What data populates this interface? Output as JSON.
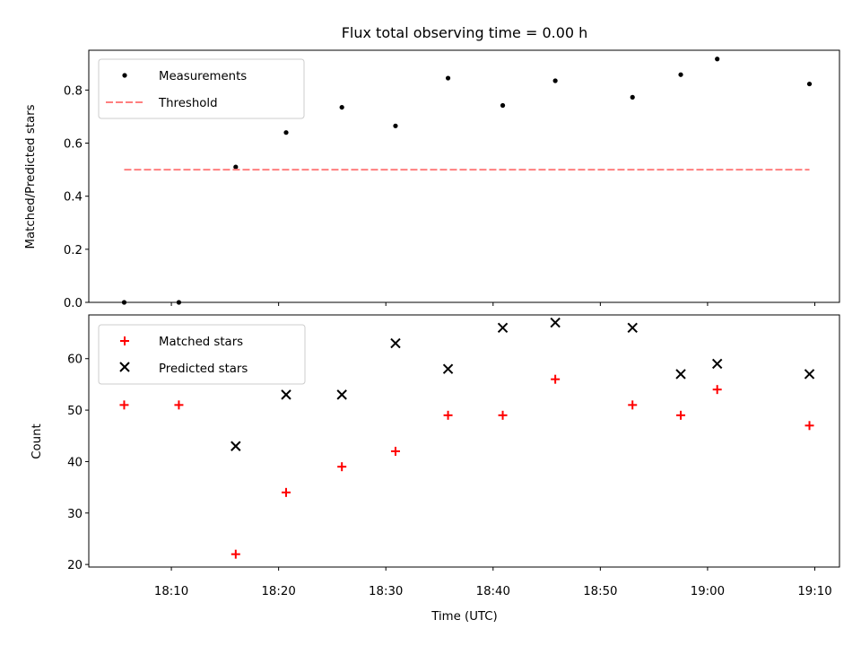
{
  "chart_data": [
    {
      "type": "scatter",
      "title": "Flux total observing time = 0.00 h",
      "xlabel": "",
      "ylabel": "Matched/Predicted stars",
      "ylim": [
        0.0,
        0.95
      ],
      "yticks": [
        0.0,
        0.2,
        0.4,
        0.6,
        0.8
      ],
      "ytick_labels": [
        "0.0",
        "0.2",
        "0.4",
        "0.6",
        "0.8"
      ],
      "xlim_minutes": [
        1082.3,
        1152.3
      ],
      "legend_position": "upper-left",
      "series": [
        {
          "name": "Measurements",
          "marker": "dot",
          "color": "#000000",
          "x_minutes": [
            1085.6,
            1090.7,
            1096.0,
            1100.7,
            1105.9,
            1110.9,
            1115.8,
            1120.9,
            1125.8,
            1133.0,
            1137.5,
            1140.9,
            1149.5
          ],
          "values": [
            0.0,
            0.0,
            0.51,
            0.64,
            0.735,
            0.665,
            0.845,
            0.742,
            0.835,
            0.773,
            0.858,
            0.917,
            0.823
          ]
        },
        {
          "name": "Threshold",
          "marker": "dashed-line",
          "color": "#ff7f7f",
          "x_minutes": [
            1085.6,
            1149.5
          ],
          "values": [
            0.5,
            0.5
          ]
        }
      ]
    },
    {
      "type": "scatter",
      "title": "",
      "xlabel": "Time (UTC)",
      "ylabel": "Count",
      "ylim": [
        19.5,
        68.5
      ],
      "yticks": [
        20,
        30,
        40,
        50,
        60
      ],
      "ytick_labels": [
        "20",
        "30",
        "40",
        "50",
        "60"
      ],
      "xlim_minutes": [
        1082.3,
        1152.3
      ],
      "xticks_minutes": [
        1090,
        1100,
        1110,
        1120,
        1130,
        1140,
        1150
      ],
      "xtick_labels": [
        "18:10",
        "18:20",
        "18:30",
        "18:40",
        "18:50",
        "19:00",
        "19:10"
      ],
      "legend_position": "upper-left",
      "series": [
        {
          "name": "Matched stars",
          "marker": "plus",
          "color": "#ff0000",
          "x_minutes": [
            1085.6,
            1090.7,
            1096.0,
            1100.7,
            1105.9,
            1110.9,
            1115.8,
            1120.9,
            1125.8,
            1133.0,
            1137.5,
            1140.9,
            1149.5
          ],
          "values": [
            51,
            51,
            22,
            34,
            39,
            42,
            49,
            49,
            56,
            51,
            49,
            54,
            47
          ]
        },
        {
          "name": "Predicted stars",
          "marker": "x",
          "color": "#000000",
          "x_minutes": [
            1096.0,
            1100.7,
            1105.9,
            1110.9,
            1115.8,
            1120.9,
            1125.8,
            1133.0,
            1137.5,
            1140.9,
            1149.5
          ],
          "values": [
            43,
            53,
            53,
            63,
            58,
            66,
            67,
            66,
            57,
            59,
            57
          ]
        }
      ]
    }
  ]
}
